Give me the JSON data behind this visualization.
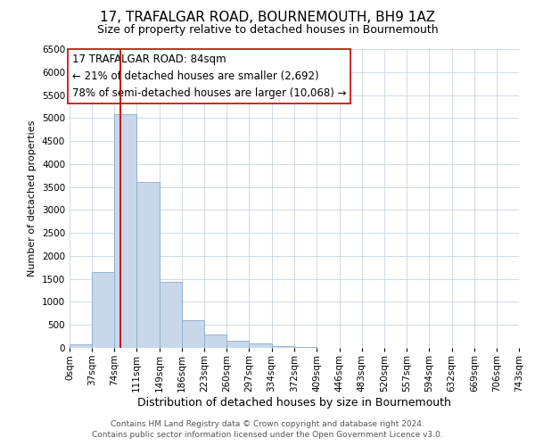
{
  "title": "17, TRAFALGAR ROAD, BOURNEMOUTH, BH9 1AZ",
  "subtitle": "Size of property relative to detached houses in Bournemouth",
  "xlabel": "Distribution of detached houses by size in Bournemouth",
  "ylabel": "Number of detached properties",
  "bar_color": "#c8d8ea",
  "bar_edge_color": "#8aaac8",
  "background_color": "#ffffff",
  "grid_color": "#c8d4e0",
  "bin_edges": [
    0,
    37,
    74,
    111,
    149,
    186,
    223,
    260,
    297,
    334,
    372,
    409,
    446,
    483,
    520,
    557,
    594,
    632,
    669,
    706,
    743
  ],
  "bin_labels": [
    "0sqm",
    "37sqm",
    "74sqm",
    "111sqm",
    "149sqm",
    "186sqm",
    "223sqm",
    "260sqm",
    "297sqm",
    "334sqm",
    "372sqm",
    "409sqm",
    "446sqm",
    "483sqm",
    "520sqm",
    "557sqm",
    "594sqm",
    "632sqm",
    "669sqm",
    "706sqm",
    "743sqm"
  ],
  "counts": [
    80,
    1650,
    5080,
    3600,
    1430,
    610,
    295,
    155,
    90,
    40,
    15,
    5,
    0,
    0,
    0,
    0,
    0,
    0,
    0,
    0
  ],
  "ylim": [
    0,
    6500
  ],
  "yticks": [
    0,
    500,
    1000,
    1500,
    2000,
    2500,
    3000,
    3500,
    4000,
    4500,
    5000,
    5500,
    6000,
    6500
  ],
  "vline_x": 84,
  "vline_color": "#cc0000",
  "annotation_title": "17 TRAFALGAR ROAD: 84sqm",
  "annotation_line1": "← 21% of detached houses are smaller (2,692)",
  "annotation_line2": "78% of semi-detached houses are larger (10,068) →",
  "annotation_box_color": "#ffffff",
  "annotation_box_edge": "#cc0000",
  "footer1": "Contains HM Land Registry data © Crown copyright and database right 2024.",
  "footer2": "Contains public sector information licensed under the Open Government Licence v3.0.",
  "title_fontsize": 11,
  "subtitle_fontsize": 9,
  "xlabel_fontsize": 9,
  "ylabel_fontsize": 8,
  "tick_fontsize": 7.5,
  "annotation_fontsize": 8.5,
  "footer_fontsize": 6.5
}
